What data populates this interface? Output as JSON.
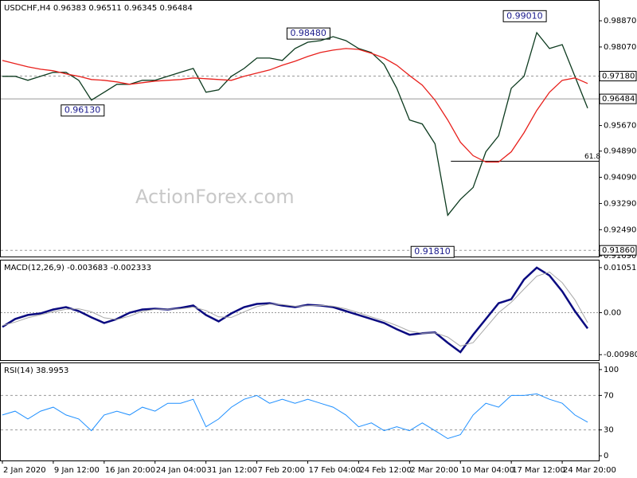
{
  "chart_data": [
    {
      "type": "line",
      "title": "USDCHF,H4  0.96383 0.96511 0.96345 0.96484",
      "watermark": "ActionForex.com",
      "x": [
        0,
        4,
        8,
        12,
        16,
        20,
        24,
        28,
        32,
        36,
        40,
        44,
        48,
        52,
        56,
        60,
        64,
        68,
        72,
        76,
        80,
        84,
        88,
        92,
        96,
        100,
        104,
        108,
        112,
        116,
        120,
        124,
        128,
        132,
        136,
        140,
        144,
        148,
        152,
        156,
        160,
        164,
        168,
        172,
        176,
        180,
        184
      ],
      "xlim": [
        -0.5,
        187.5
      ],
      "series": [
        {
          "color": "#0c3a1e",
          "values": [
            0.97173,
            0.97173,
            0.97052,
            0.97173,
            0.97294,
            0.97294,
            0.97052,
            0.96446,
            0.96688,
            0.96931,
            0.96931,
            0.97052,
            0.97052,
            0.97173,
            0.97294,
            0.97415,
            0.96688,
            0.96761,
            0.97173,
            0.97415,
            0.97731,
            0.97731,
            0.97658,
            0.98022,
            0.98215,
            0.98264,
            0.98385,
            0.98264,
            0.98022,
            0.979,
            0.97537,
            0.96809,
            0.9584,
            0.95718,
            0.95112,
            0.92931,
            0.93415,
            0.93779,
            0.9487,
            0.95355,
            0.96809,
            0.97173,
            0.98506,
            0.98022,
            0.98143,
            0.97173,
            0.96203
          ]
        },
        {
          "color": "#e8201c",
          "values": [
            0.97658,
            0.97561,
            0.97464,
            0.97391,
            0.97343,
            0.97246,
            0.97173,
            0.97076,
            0.97052,
            0.97003,
            0.96931,
            0.96979,
            0.97028,
            0.97052,
            0.97076,
            0.97125,
            0.971,
            0.97076,
            0.97052,
            0.97173,
            0.9727,
            0.97367,
            0.97512,
            0.97634,
            0.97779,
            0.979,
            0.97973,
            0.98022,
            0.97997,
            0.97876,
            0.97731,
            0.97512,
            0.97197,
            0.96906,
            0.96446,
            0.9584,
            0.95161,
            0.94749,
            0.94555,
            0.94555,
            0.9487,
            0.95452,
            0.96131,
            0.96688,
            0.97052,
            0.97125,
            0.96955
          ]
        }
      ],
      "ylim": [
        0.9167,
        0.9948
      ],
      "yticks": [
        {
          "value": 0.9887,
          "label": "0.98870"
        },
        {
          "value": 0.9807,
          "label": "0.98070"
        },
        {
          "value": 0.9567,
          "label": "0.95670"
        },
        {
          "value": 0.9489,
          "label": "0.94890"
        },
        {
          "value": 0.9409,
          "label": "0.94090"
        },
        {
          "value": 0.9329,
          "label": "0.93290"
        },
        {
          "value": 0.9249,
          "label": "0.92490"
        },
        {
          "value": 0.9169,
          "label": "0.91690"
        }
      ],
      "levels": [
        {
          "value": 0.9718,
          "label": "0.97180",
          "style": "dashed"
        },
        {
          "value": 0.96484,
          "label": "0.96484",
          "style": "solid"
        },
        {
          "value": 0.9186,
          "label": "0.91860",
          "style": "dashed"
        }
      ],
      "annotations": [
        {
          "label": "0.99010",
          "x": 171,
          "value": 0.9901
        },
        {
          "label": "0.98480",
          "x": 103,
          "value": 0.9848
        },
        {
          "label": "0.96130",
          "x": 32,
          "value": 0.9613
        },
        {
          "label": "0.91810",
          "x": 142,
          "value": 0.9181
        }
      ],
      "fib": {
        "label": "61.8",
        "value": 0.94579,
        "x": 141
      }
    },
    {
      "type": "line",
      "title": "MACD(12,26,9) -0.003683 -0.002333",
      "x": [
        0,
        4,
        8,
        12,
        16,
        20,
        24,
        28,
        32,
        36,
        40,
        44,
        48,
        52,
        56,
        60,
        64,
        68,
        72,
        76,
        80,
        84,
        88,
        92,
        96,
        100,
        104,
        108,
        112,
        116,
        120,
        124,
        128,
        132,
        136,
        140,
        144,
        148,
        152,
        156,
        160,
        164,
        168,
        172,
        176,
        180,
        184
      ],
      "xlim": [
        -0.5,
        187.5
      ],
      "series": [
        {
          "color": "#0a0a80",
          "width": 2.5,
          "values": [
            -0.00332,
            -0.00148,
            -0.00055,
            -0.00018,
            0.00074,
            0.00129,
            0.00037,
            -0.00111,
            -0.0024,
            -0.00148,
            0,
            0.00074,
            0.00092,
            0.00074,
            0.00111,
            0.00166,
            -0.00055,
            -0.00203,
            -0.00018,
            0.00129,
            0.00203,
            0.00221,
            0.00166,
            0.00129,
            0.00184,
            0.00166,
            0.00129,
            0.00037,
            -0.00055,
            -0.00148,
            -0.0024,
            -0.00387,
            -0.00516,
            -0.00479,
            -0.00461,
            -0.00701,
            -0.00922,
            -0.00516,
            -0.00148,
            0.00221,
            0.00313,
            0.00774,
            0.01051,
            0.00867,
            0.00498,
            0.00037,
            -0.00368
          ]
        },
        {
          "color": "#a8a8a8",
          "width": 1,
          "values": [
            -0.003,
            -0.0022,
            -0.0012,
            -0.0005,
            0.0002,
            0.0008,
            0.0009,
            0.0002,
            -0.0012,
            -0.0016,
            -0.0008,
            0.0003,
            0.0008,
            0.0008,
            0.0009,
            0.0013,
            0.0005,
            -0.001,
            -0.0011,
            0.0002,
            0.0014,
            0.002,
            0.0019,
            0.0015,
            0.0016,
            0.0017,
            0.0015,
            0.0009,
            0,
            -0.001,
            -0.0019,
            -0.003,
            -0.0043,
            -0.0048,
            -0.0047,
            -0.0057,
            -0.0078,
            -0.007,
            -0.0035,
            0,
            0.0024,
            0.0055,
            0.0085,
            0.0095,
            0.007,
            0.003,
            -0.00233
          ]
        }
      ],
      "ylim": [
        -0.01107,
        0.01217
      ],
      "yticks": [
        0.010513,
        {
          "value": 0,
          "label": "0.00"
        },
        -0.009804
      ],
      "levels": [
        {
          "value": 0,
          "style": "dotted"
        }
      ]
    },
    {
      "type": "line",
      "title": "RSI(14) 38.9953",
      "x": [
        0,
        4,
        8,
        12,
        16,
        20,
        24,
        28,
        32,
        36,
        40,
        44,
        48,
        52,
        56,
        60,
        64,
        68,
        72,
        76,
        80,
        84,
        88,
        92,
        96,
        100,
        104,
        108,
        112,
        116,
        120,
        124,
        128,
        132,
        136,
        140,
        144,
        148,
        152,
        156,
        160,
        164,
        168,
        172,
        176,
        180,
        184
      ],
      "xlim": [
        -0.5,
        187.5
      ],
      "series": [
        {
          "color": "#1e8fff",
          "width": 1,
          "values": [
            47.3,
            51.8,
            42.7,
            51.8,
            56.4,
            47.3,
            42.7,
            29.1,
            47.3,
            51.8,
            47.3,
            56.4,
            51.8,
            60.9,
            60.9,
            65.5,
            33.6,
            42.7,
            56.4,
            65.5,
            70,
            60.9,
            65.5,
            60.9,
            65.5,
            60.9,
            56.4,
            47.3,
            33.6,
            38.2,
            29.1,
            33.6,
            29.1,
            38.2,
            29.1,
            20,
            24.5,
            47.3,
            60.9,
            56.4,
            70,
            70,
            71.8,
            65.5,
            60.9,
            47.3,
            39.0
          ]
        }
      ],
      "ylim": [
        -5.45,
        107.3
      ],
      "yticks": [
        100,
        70,
        30,
        0
      ],
      "levels": [
        {
          "value": 70,
          "style": "dashed"
        },
        {
          "value": 30,
          "style": "dashed"
        }
      ],
      "xticks": [
        {
          "value": 0,
          "label": "2 Jan 2020"
        },
        {
          "value": 16,
          "label": "9 Jan 12:00"
        },
        {
          "value": 32,
          "label": "16 Jan 20:00"
        },
        {
          "value": 48,
          "label": "24 Jan 04:00"
        },
        {
          "value": 64,
          "label": "31 Jan 12:00"
        },
        {
          "value": 80,
          "label": "7 Feb 20:00"
        },
        {
          "value": 96,
          "label": "17 Feb 04:00"
        },
        {
          "value": 112,
          "label": "24 Feb 12:00"
        },
        {
          "value": 128,
          "label": "2 Mar 20:00"
        },
        {
          "value": 144,
          "label": "10 Mar 04:00"
        },
        {
          "value": 160,
          "label": "17 Mar 12:00"
        },
        {
          "value": 176,
          "label": "24 Mar 20:00"
        }
      ]
    }
  ]
}
